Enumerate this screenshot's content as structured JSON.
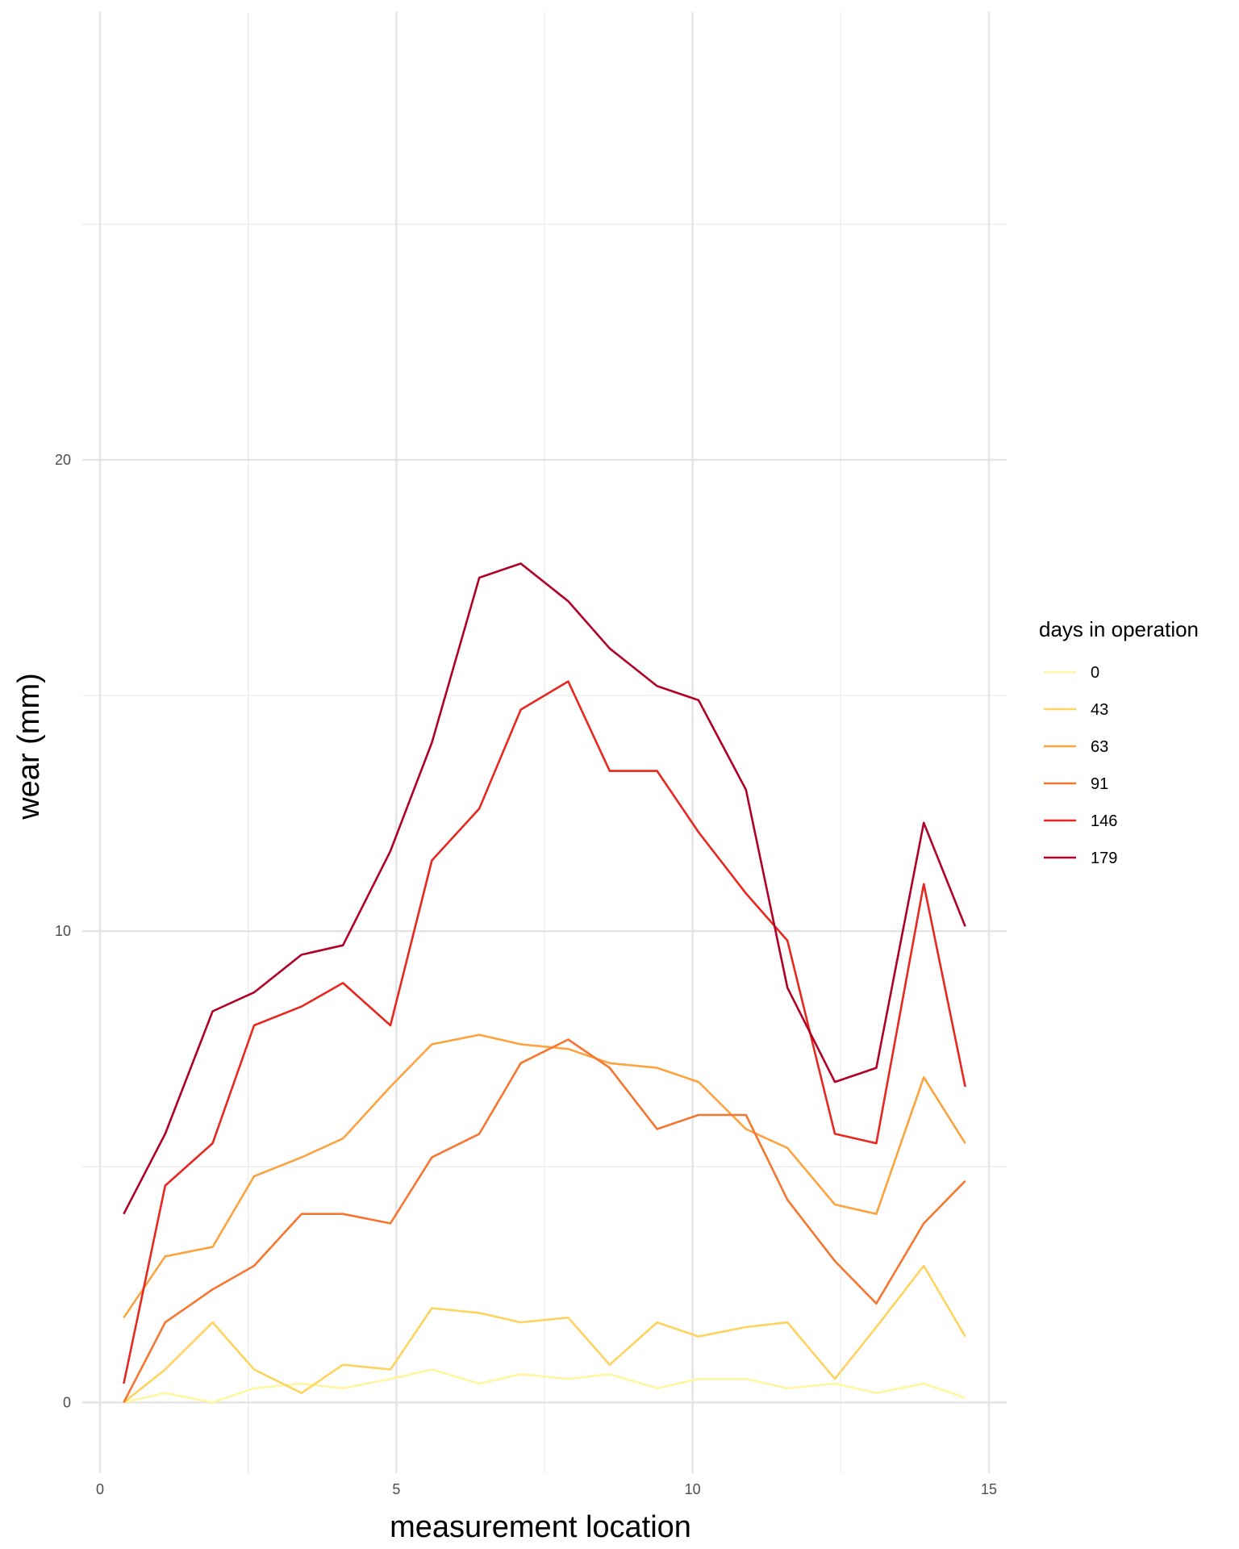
{
  "chart_data": {
    "type": "line",
    "title": "",
    "xlabel": "measurement location",
    "ylabel": "wear (mm)",
    "xlim": [
      -0.3,
      15.3
    ],
    "ylim": [
      -1.5,
      29.5
    ],
    "x_ticks": [
      0,
      5,
      10,
      15
    ],
    "y_ticks": [
      0,
      10,
      20
    ],
    "grid": true,
    "legend": {
      "title": "days in operation",
      "position": "right"
    },
    "x": [
      0.4,
      1.1,
      1.9,
      2.6,
      3.4,
      4.1,
      4.9,
      5.6,
      6.4,
      7.1,
      7.9,
      8.6,
      9.4,
      10.1,
      10.9,
      11.6,
      12.4,
      13.1,
      13.9,
      14.6
    ],
    "series": [
      {
        "name": "0",
        "color": "#FFF7A0",
        "values": [
          0.0,
          0.2,
          0.0,
          0.3,
          0.4,
          0.3,
          0.5,
          0.7,
          0.4,
          0.6,
          0.5,
          0.6,
          0.3,
          0.5,
          0.5,
          0.3,
          0.4,
          0.2,
          0.4,
          0.1
        ]
      },
      {
        "name": "43",
        "color": "#FED35E",
        "values": [
          0.0,
          0.7,
          1.7,
          0.7,
          0.2,
          0.8,
          0.7,
          2.0,
          1.9,
          1.7,
          1.8,
          0.8,
          1.7,
          1.4,
          1.6,
          1.7,
          0.5,
          1.6,
          2.9,
          1.4
        ]
      },
      {
        "name": "63",
        "color": "#FDA33E",
        "values": [
          1.8,
          3.1,
          3.3,
          4.8,
          5.2,
          5.6,
          6.7,
          7.6,
          7.8,
          7.6,
          7.5,
          7.2,
          7.1,
          6.8,
          5.8,
          5.4,
          4.2,
          4.0,
          6.9,
          5.5
        ]
      },
      {
        "name": "91",
        "color": "#F7762F",
        "values": [
          0.0,
          1.7,
          2.4,
          2.9,
          4.0,
          4.0,
          3.8,
          5.2,
          5.7,
          7.2,
          7.7,
          7.1,
          5.8,
          6.1,
          6.1,
          4.3,
          3.0,
          2.1,
          3.8,
          4.7
        ]
      },
      {
        "name": "146",
        "color": "#E8271F",
        "values": [
          0.4,
          4.6,
          5.5,
          8.0,
          8.4,
          8.9,
          8.0,
          11.5,
          12.6,
          14.7,
          15.3,
          13.4,
          13.4,
          12.1,
          10.8,
          9.8,
          5.7,
          5.5,
          11.0,
          6.7
        ]
      },
      {
        "name": "179",
        "color": "#B10026",
        "values": [
          4.0,
          5.7,
          8.3,
          8.7,
          9.5,
          9.7,
          11.7,
          14.0,
          17.5,
          17.8,
          17.0,
          16.0,
          15.2,
          14.9,
          13.0,
          8.8,
          6.8,
          7.1,
          12.3,
          10.1
        ]
      }
    ]
  }
}
